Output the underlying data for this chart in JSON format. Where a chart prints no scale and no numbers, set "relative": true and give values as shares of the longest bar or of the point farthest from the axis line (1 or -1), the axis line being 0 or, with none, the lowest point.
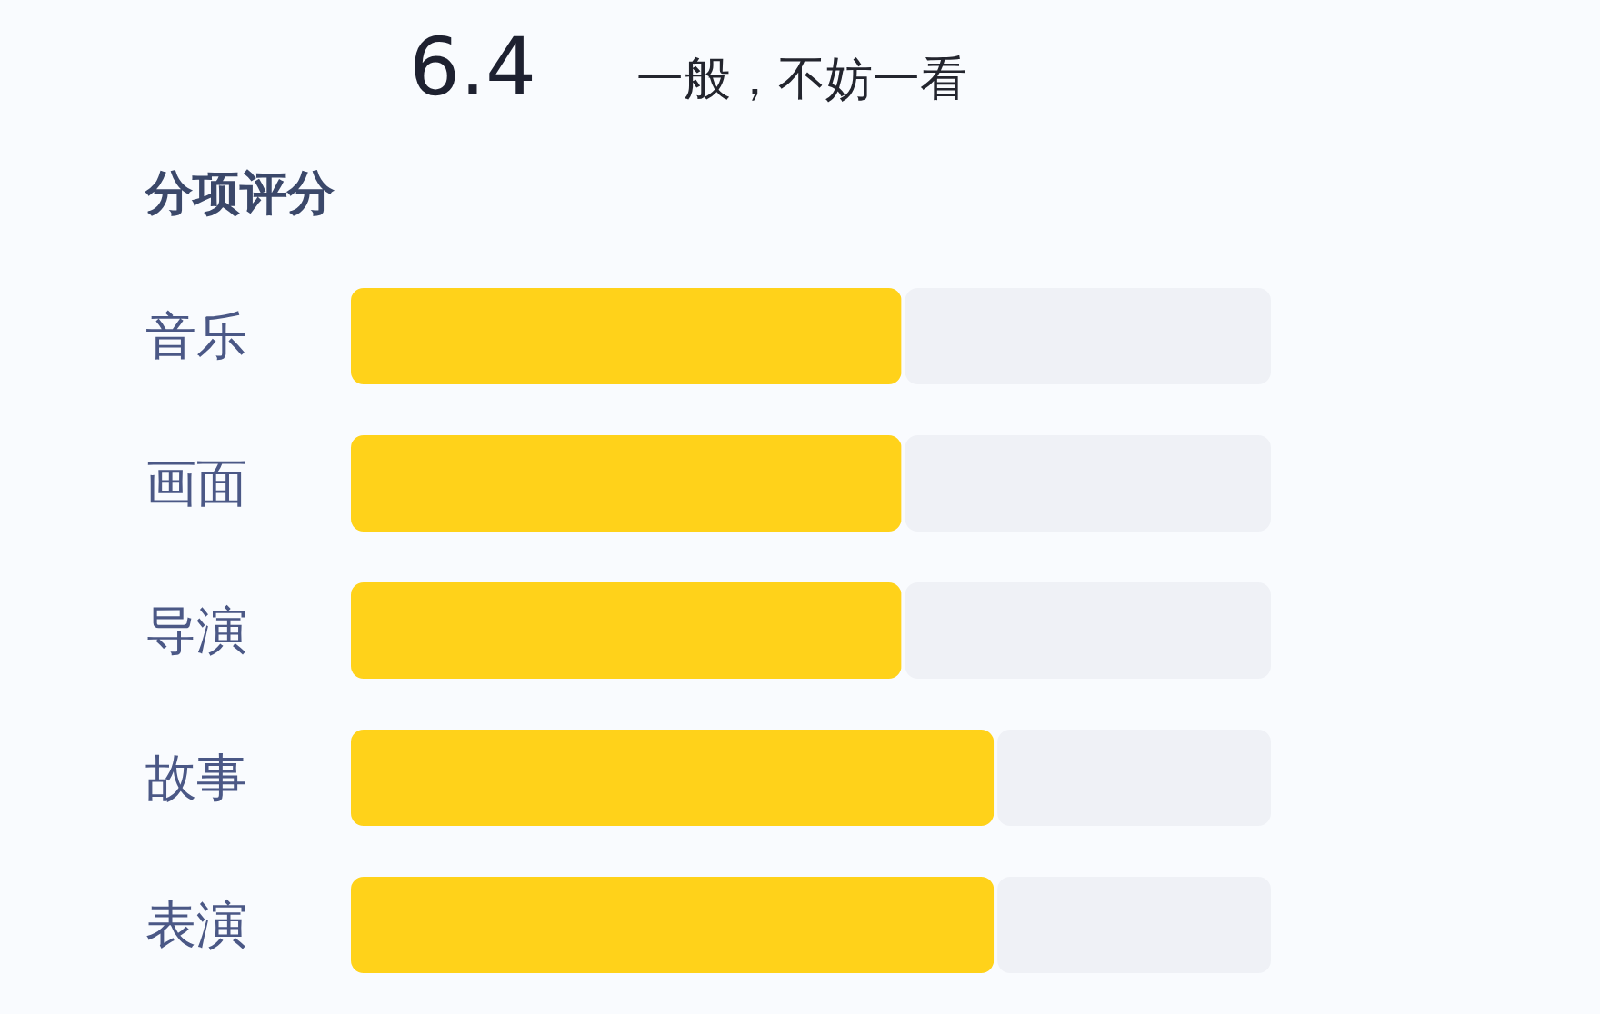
{
  "chart_data": {
    "type": "bar",
    "orientation": "horizontal",
    "stacked": true,
    "relative": true,
    "title": "分项评分",
    "annotations": [
      "6.4",
      "一般，不妨一看"
    ],
    "categories": [
      "音乐",
      "画面",
      "导演",
      "故事",
      "表演"
    ],
    "series": [
      {
        "color": "#ffd21a",
        "values": [
          0.6,
          0.6,
          0.6,
          0.7,
          0.7
        ]
      },
      {
        "color": "#eff1f6",
        "values": [
          0.4,
          0.4,
          0.4,
          0.3,
          0.3
        ]
      }
    ]
  }
}
